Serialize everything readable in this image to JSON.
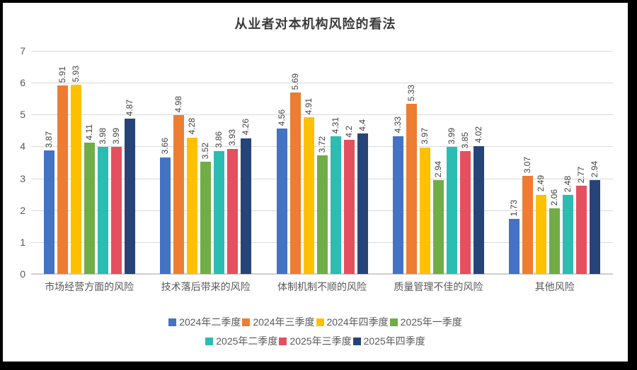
{
  "chart_data": {
    "type": "bar",
    "title": "从业者对本机构风险的看法",
    "categories": [
      "市场经营方面的风险",
      "技术落后带来的风险",
      "体制机制不顺的风险",
      "质量管理不佳的风险",
      "其他风险"
    ],
    "series": [
      {
        "name": "2024年二季度",
        "color": "#4472C4",
        "values": [
          3.87,
          3.66,
          4.56,
          4.33,
          1.73
        ]
      },
      {
        "name": "2024年三季度",
        "color": "#ED7D31",
        "values": [
          5.91,
          4.98,
          5.69,
          5.33,
          3.07
        ]
      },
      {
        "name": "2024年四季度",
        "color": "#FFC000",
        "values": [
          5.93,
          4.28,
          4.91,
          3.97,
          2.49
        ]
      },
      {
        "name": "2025年一季度",
        "color": "#70AD47",
        "values": [
          4.11,
          3.52,
          3.72,
          2.94,
          2.06
        ]
      },
      {
        "name": "2025年二季度",
        "color": "#2CBCB1",
        "values": [
          3.98,
          3.86,
          4.31,
          3.99,
          2.48
        ]
      },
      {
        "name": "2025年三季度",
        "color": "#E4505F",
        "values": [
          3.99,
          3.93,
          4.2,
          3.85,
          2.77
        ]
      },
      {
        "name": "2025年四季度",
        "color": "#264478",
        "values": [
          4.87,
          4.26,
          4.4,
          4.02,
          2.94
        ]
      }
    ],
    "xlabel": "",
    "ylabel": "",
    "ylim": [
      0,
      7
    ],
    "yticks": [
      0,
      1,
      2,
      3,
      4,
      5,
      6,
      7
    ],
    "grid": true,
    "data_labels": "rotated-vertical",
    "legend_position": "bottom",
    "legend_rows": [
      4,
      3
    ]
  }
}
